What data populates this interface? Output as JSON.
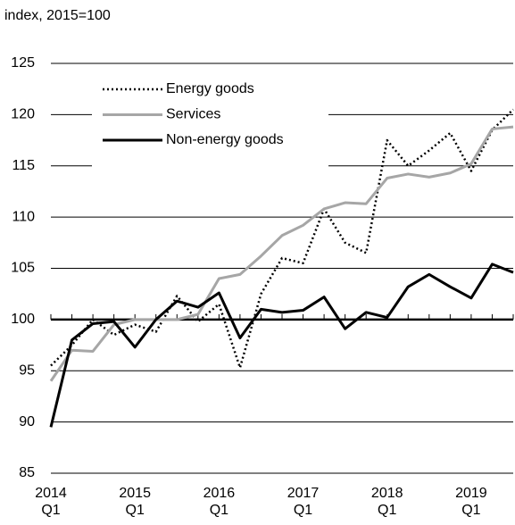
{
  "chart_data": {
    "type": "line",
    "subtitle": "index, 2015=100",
    "categories": [
      "2014 Q1",
      null,
      null,
      null,
      "2015 Q1",
      null,
      null,
      null,
      "2016 Q1",
      null,
      null,
      null,
      "2017 Q1",
      null,
      null,
      null,
      "2018 Q1",
      null,
      null,
      null,
      "2019 Q1",
      null,
      null
    ],
    "series": [
      {
        "name": "Energy goods",
        "color": "#000000",
        "dash": "dotted",
        "values": [
          95.5,
          97.5,
          100,
          98.5,
          99.5,
          98.8,
          102.3,
          99.8,
          101.5,
          95.3,
          102.5,
          106,
          105.5,
          110.8,
          107.5,
          106.5,
          117.5,
          115,
          116.5,
          118.2,
          114.5,
          118.5,
          120.5
        ]
      },
      {
        "name": "Services",
        "color": "#a6a6a6",
        "dash": "solid",
        "values": [
          94,
          97,
          96.9,
          99.5,
          100,
          100,
          100,
          100.5,
          104,
          104.4,
          106.2,
          108.2,
          109.2,
          110.8,
          111.4,
          111.3,
          113.8,
          114.2,
          113.9,
          114.3,
          115.2,
          118.6,
          118.8
        ]
      },
      {
        "name": "Non-energy goods",
        "color": "#000000",
        "dash": "solid",
        "values": [
          89.5,
          98,
          99.6,
          99.8,
          97.3,
          100,
          101.8,
          101.2,
          102.6,
          98.2,
          101,
          100.7,
          100.9,
          102.2,
          99.1,
          100.7,
          100.2,
          103.2,
          104.4,
          103.2,
          102.1,
          105.4,
          104.6
        ]
      }
    ],
    "ylim": [
      85,
      125
    ],
    "yticks": [
      85,
      90,
      95,
      100,
      105,
      110,
      115,
      120,
      125
    ],
    "grid": true,
    "x_axis_crosses": 100,
    "legend": "top-left"
  }
}
